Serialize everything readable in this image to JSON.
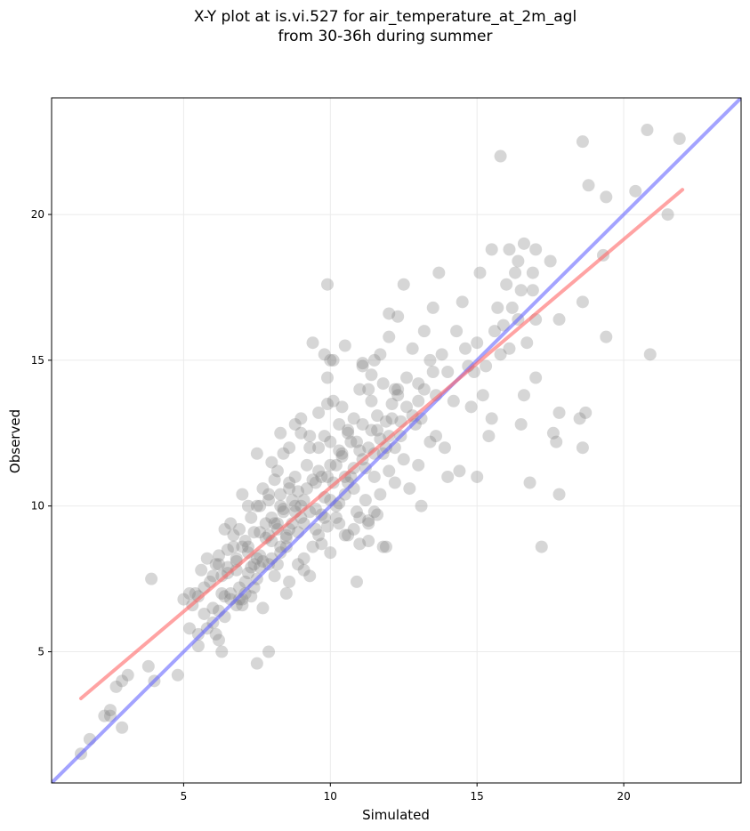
{
  "chart_data": {
    "type": "scatter",
    "title": "X-Y plot at is.vi.527 for air_temperature_at_2m_agl",
    "subtitle": "from 30-36h during summer",
    "xlabel": "Simulated",
    "ylabel": "Observed",
    "xlim": [
      0.5,
      24.0
    ],
    "ylim": [
      0.5,
      24.0
    ],
    "xticks": [
      5,
      10,
      15,
      20
    ],
    "yticks": [
      5,
      10,
      15,
      20
    ],
    "grid": true,
    "point_color": "#808080",
    "identity_line": {
      "color": "#6666ff",
      "x": [
        0.5,
        24.0
      ],
      "y": [
        0.5,
        24.0
      ]
    },
    "fit_line": {
      "color": "#ff6666",
      "x": [
        1.5,
        22.0
      ],
      "y": [
        3.4,
        20.85
      ]
    },
    "points": [
      [
        1.5,
        1.5
      ],
      [
        1.8,
        2.0
      ],
      [
        2.3,
        2.8
      ],
      [
        2.5,
        3.0
      ],
      [
        2.5,
        2.8
      ],
      [
        2.7,
        3.8
      ],
      [
        2.9,
        4.0
      ],
      [
        3.1,
        4.2
      ],
      [
        2.9,
        2.4
      ],
      [
        3.8,
        4.5
      ],
      [
        3.9,
        7.5
      ],
      [
        4.0,
        4.0
      ],
      [
        4.8,
        4.2
      ],
      [
        5.2,
        5.8
      ],
      [
        5.3,
        6.6
      ],
      [
        5.4,
        7.0
      ],
      [
        5.5,
        5.6
      ],
      [
        5.5,
        5.2
      ],
      [
        5.6,
        7.8
      ],
      [
        5.7,
        7.2
      ],
      [
        5.8,
        8.2
      ],
      [
        5.9,
        7.4
      ],
      [
        6.0,
        6.5
      ],
      [
        6.1,
        5.6
      ],
      [
        6.2,
        5.4
      ],
      [
        6.2,
        8.0
      ],
      [
        6.3,
        7.0
      ],
      [
        6.4,
        6.2
      ],
      [
        6.5,
        8.5
      ],
      [
        6.5,
        7.7
      ],
      [
        6.6,
        6.8
      ],
      [
        6.3,
        5.0
      ],
      [
        6.7,
        9.0
      ],
      [
        6.8,
        7.8
      ],
      [
        6.8,
        8.1
      ],
      [
        6.9,
        9.2
      ],
      [
        7.0,
        10.4
      ],
      [
        7.0,
        6.8
      ],
      [
        7.1,
        7.4
      ],
      [
        7.2,
        8.6
      ],
      [
        7.2,
        10.0
      ],
      [
        7.3,
        9.6
      ],
      [
        7.4,
        7.2
      ],
      [
        7.5,
        11.8
      ],
      [
        7.5,
        8.2
      ],
      [
        7.6,
        10.0
      ],
      [
        7.6,
        9.1
      ],
      [
        7.7,
        6.5
      ],
      [
        7.8,
        9.4
      ],
      [
        7.9,
        10.4
      ],
      [
        7.9,
        8.0
      ],
      [
        8.0,
        11.5
      ],
      [
        8.0,
        8.8
      ],
      [
        8.1,
        7.6
      ],
      [
        8.2,
        11.2
      ],
      [
        8.2,
        9.2
      ],
      [
        8.3,
        10.0
      ],
      [
        8.3,
        8.4
      ],
      [
        8.4,
        11.8
      ],
      [
        8.4,
        9.8
      ],
      [
        8.5,
        7.0
      ],
      [
        8.5,
        8.6
      ],
      [
        8.6,
        10.8
      ],
      [
        8.6,
        7.4
      ],
      [
        8.7,
        9.4
      ],
      [
        8.8,
        12.8
      ],
      [
        8.8,
        10.0
      ],
      [
        8.9,
        8.0
      ],
      [
        9.0,
        13.0
      ],
      [
        9.0,
        9.6
      ],
      [
        9.1,
        10.2
      ],
      [
        9.1,
        8.2
      ],
      [
        9.2,
        11.4
      ],
      [
        9.3,
        12.0
      ],
      [
        9.3,
        7.6
      ],
      [
        9.4,
        15.6
      ],
      [
        9.5,
        10.8
      ],
      [
        9.5,
        9.2
      ],
      [
        9.6,
        13.2
      ],
      [
        9.7,
        11.0
      ],
      [
        9.7,
        8.7
      ],
      [
        9.8,
        12.4
      ],
      [
        9.8,
        9.6
      ],
      [
        9.9,
        17.6
      ],
      [
        9.9,
        14.4
      ],
      [
        10.0,
        11.4
      ],
      [
        10.0,
        8.4
      ],
      [
        10.1,
        15.0
      ],
      [
        10.1,
        13.6
      ],
      [
        10.2,
        10.0
      ],
      [
        10.3,
        12.8
      ],
      [
        10.3,
        9.4
      ],
      [
        10.4,
        11.8
      ],
      [
        10.4,
        13.4
      ],
      [
        10.5,
        15.5
      ],
      [
        10.5,
        10.4
      ],
      [
        10.6,
        12.5
      ],
      [
        10.6,
        9.0
      ],
      [
        10.7,
        11.0
      ],
      [
        10.8,
        13.0
      ],
      [
        10.8,
        10.6
      ],
      [
        10.9,
        12.2
      ],
      [
        10.9,
        7.4
      ],
      [
        11.0,
        14.0
      ],
      [
        11.0,
        9.6
      ],
      [
        11.1,
        11.6
      ],
      [
        11.1,
        14.8
      ],
      [
        11.2,
        10.2
      ],
      [
        11.3,
        12.0
      ],
      [
        11.3,
        8.8
      ],
      [
        11.4,
        13.6
      ],
      [
        11.5,
        11.0
      ],
      [
        11.5,
        9.8
      ],
      [
        11.6,
        12.6
      ],
      [
        11.7,
        15.2
      ],
      [
        11.7,
        10.4
      ],
      [
        11.8,
        14.2
      ],
      [
        11.8,
        8.6
      ],
      [
        11.9,
        12.0
      ],
      [
        12.0,
        16.6
      ],
      [
        12.0,
        11.2
      ],
      [
        12.1,
        13.0
      ],
      [
        12.2,
        10.8
      ],
      [
        12.3,
        14.0
      ],
      [
        12.4,
        12.4
      ],
      [
        12.5,
        17.6
      ],
      [
        12.5,
        11.6
      ],
      [
        12.6,
        13.4
      ],
      [
        12.7,
        10.6
      ],
      [
        12.8,
        15.4
      ],
      [
        12.9,
        12.8
      ],
      [
        13.0,
        14.2
      ],
      [
        13.0,
        11.4
      ],
      [
        13.1,
        13.0
      ],
      [
        13.1,
        10.0
      ],
      [
        13.2,
        16.0
      ],
      [
        13.4,
        12.2
      ],
      [
        13.5,
        16.8
      ],
      [
        13.5,
        14.6
      ],
      [
        13.6,
        12.4
      ],
      [
        13.7,
        18.0
      ],
      [
        13.8,
        15.2
      ],
      [
        13.9,
        12.0
      ],
      [
        14.0,
        14.6
      ],
      [
        14.0,
        11.0
      ],
      [
        14.2,
        13.6
      ],
      [
        14.3,
        16.0
      ],
      [
        14.4,
        11.2
      ],
      [
        14.5,
        17.0
      ],
      [
        14.6,
        15.4
      ],
      [
        14.7,
        14.8
      ],
      [
        14.8,
        13.4
      ],
      [
        14.9,
        14.6
      ],
      [
        15.0,
        11.0
      ],
      [
        15.0,
        15.6
      ],
      [
        15.1,
        18.0
      ],
      [
        15.2,
        13.8
      ],
      [
        15.3,
        14.8
      ],
      [
        15.4,
        12.4
      ],
      [
        15.5,
        13.0
      ],
      [
        15.5,
        18.8
      ],
      [
        15.6,
        16.0
      ],
      [
        15.7,
        16.8
      ],
      [
        15.8,
        15.2
      ],
      [
        15.8,
        22.0
      ],
      [
        15.9,
        16.2
      ],
      [
        16.0,
        17.6
      ],
      [
        16.1,
        18.8
      ],
      [
        16.1,
        15.4
      ],
      [
        16.2,
        16.8
      ],
      [
        16.3,
        18.0
      ],
      [
        16.4,
        16.4
      ],
      [
        16.4,
        18.4
      ],
      [
        16.5,
        17.4
      ],
      [
        16.5,
        12.8
      ],
      [
        16.6,
        19.0
      ],
      [
        16.6,
        13.8
      ],
      [
        16.7,
        15.6
      ],
      [
        16.8,
        10.8
      ],
      [
        16.9,
        17.4
      ],
      [
        16.9,
        18.0
      ],
      [
        17.0,
        18.8
      ],
      [
        17.0,
        14.4
      ],
      [
        17.0,
        16.4
      ],
      [
        17.2,
        8.6
      ],
      [
        17.5,
        18.4
      ],
      [
        17.6,
        12.5
      ],
      [
        17.7,
        12.2
      ],
      [
        17.8,
        13.2
      ],
      [
        17.8,
        10.4
      ],
      [
        17.8,
        16.4
      ],
      [
        18.5,
        13.0
      ],
      [
        18.6,
        17.0
      ],
      [
        18.6,
        12.0
      ],
      [
        18.6,
        22.5
      ],
      [
        18.7,
        13.2
      ],
      [
        18.8,
        21.0
      ],
      [
        19.3,
        18.6
      ],
      [
        19.4,
        20.6
      ],
      [
        19.4,
        15.8
      ],
      [
        20.4,
        20.8
      ],
      [
        20.8,
        22.9
      ],
      [
        20.9,
        15.2
      ],
      [
        21.5,
        20.0
      ],
      [
        21.9,
        22.6
      ],
      [
        6.4,
        6.9
      ],
      [
        6.6,
        7.0
      ],
      [
        6.8,
        6.6
      ],
      [
        6.9,
        6.8
      ],
      [
        7.0,
        6.6
      ],
      [
        7.1,
        8.8
      ],
      [
        7.2,
        8.4
      ],
      [
        7.3,
        7.9
      ],
      [
        7.4,
        9.1
      ],
      [
        7.5,
        7.5
      ],
      [
        7.6,
        8.3
      ],
      [
        7.7,
        8.1
      ],
      [
        7.8,
        8.9
      ],
      [
        7.9,
        9.0
      ],
      [
        8.0,
        8.2
      ],
      [
        8.1,
        9.4
      ],
      [
        8.2,
        9.4
      ],
      [
        8.3,
        8.6
      ],
      [
        8.4,
        9.9
      ],
      [
        8.5,
        8.9
      ],
      [
        8.6,
        9.2
      ],
      [
        8.7,
        10.2
      ],
      [
        8.8,
        9.8
      ],
      [
        8.9,
        10.5
      ],
      [
        9.0,
        10.0
      ],
      [
        9.1,
        9.4
      ],
      [
        9.2,
        10.6
      ],
      [
        9.3,
        9.8
      ],
      [
        9.4,
        10.9
      ],
      [
        9.5,
        9.9
      ],
      [
        9.6,
        11.2
      ],
      [
        9.7,
        9.7
      ],
      [
        9.8,
        10.3
      ],
      [
        9.9,
        11.0
      ],
      [
        10.0,
        10.2
      ],
      [
        10.1,
        10.8
      ],
      [
        10.2,
        11.4
      ],
      [
        10.3,
        10.1
      ],
      [
        10.4,
        11.7
      ],
      [
        10.5,
        11.0
      ],
      [
        10.6,
        10.8
      ],
      [
        10.7,
        12.2
      ],
      [
        10.8,
        11.3
      ],
      [
        10.9,
        9.8
      ],
      [
        11.0,
        11.9
      ],
      [
        11.1,
        12.8
      ],
      [
        11.2,
        11.3
      ],
      [
        11.3,
        9.5
      ],
      [
        11.4,
        12.6
      ],
      [
        11.5,
        11.8
      ],
      [
        11.6,
        13.1
      ],
      [
        11.7,
        12.3
      ],
      [
        11.8,
        11.8
      ],
      [
        11.9,
        12.9
      ],
      [
        12.0,
        12.4
      ],
      [
        12.1,
        13.5
      ],
      [
        12.2,
        12.0
      ],
      [
        12.3,
        13.8
      ],
      [
        12.4,
        12.9
      ],
      [
        12.6,
        14.4
      ],
      [
        12.8,
        13.1
      ],
      [
        13.0,
        13.6
      ],
      [
        13.2,
        14.0
      ],
      [
        13.4,
        15.0
      ],
      [
        13.6,
        13.8
      ],
      [
        8.0,
        9.6
      ],
      [
        8.2,
        8.0
      ],
      [
        8.5,
        9.0
      ],
      [
        8.9,
        9.1
      ],
      [
        9.1,
        7.8
      ],
      [
        9.4,
        8.6
      ],
      [
        9.6,
        9.0
      ],
      [
        9.9,
        9.3
      ],
      [
        10.2,
        9.6
      ],
      [
        10.5,
        9.0
      ],
      [
        10.8,
        9.2
      ],
      [
        11.0,
        8.7
      ],
      [
        11.3,
        9.4
      ],
      [
        11.6,
        9.7
      ],
      [
        11.9,
        8.6
      ],
      [
        9.6,
        12.0
      ],
      [
        9.3,
        12.4
      ],
      [
        9.0,
        12.5
      ],
      [
        10.6,
        12.6
      ],
      [
        10.3,
        11.9
      ],
      [
        10.0,
        12.2
      ],
      [
        11.1,
        14.9
      ],
      [
        11.5,
        15.0
      ],
      [
        12.0,
        15.8
      ],
      [
        12.3,
        16.5
      ],
      [
        9.8,
        15.2
      ],
      [
        10.0,
        15.0
      ],
      [
        9.9,
        13.5
      ],
      [
        8.6,
        12.0
      ],
      [
        8.3,
        12.5
      ],
      [
        5.0,
        6.8
      ],
      [
        5.2,
        7.0
      ],
      [
        5.5,
        6.9
      ],
      [
        5.7,
        6.3
      ],
      [
        5.8,
        5.8
      ],
      [
        6.0,
        6.0
      ],
      [
        6.2,
        6.4
      ],
      [
        6.0,
        7.6
      ],
      [
        6.3,
        7.6
      ],
      [
        6.5,
        7.9
      ],
      [
        6.9,
        7.2
      ],
      [
        7.1,
        7.0
      ],
      [
        7.3,
        6.9
      ],
      [
        7.5,
        10.0
      ],
      [
        7.7,
        10.6
      ],
      [
        7.9,
        10.2
      ],
      [
        8.1,
        10.9
      ],
      [
        8.3,
        10.4
      ],
      [
        8.6,
        10.6
      ],
      [
        8.8,
        11.0
      ],
      [
        6.1,
        8.0
      ],
      [
        6.2,
        8.3
      ],
      [
        6.7,
        8.6
      ],
      [
        6.4,
        9.2
      ],
      [
        6.6,
        9.4
      ],
      [
        6.8,
        8.2
      ],
      [
        7.0,
        8.6
      ],
      [
        7.2,
        7.7
      ],
      [
        7.4,
        8.0
      ],
      [
        7.6,
        7.9
      ],
      [
        7.5,
        4.6
      ],
      [
        7.9,
        5.0
      ],
      [
        12.2,
        14.0
      ],
      [
        11.3,
        14.0
      ],
      [
        11.4,
        14.5
      ]
    ]
  }
}
